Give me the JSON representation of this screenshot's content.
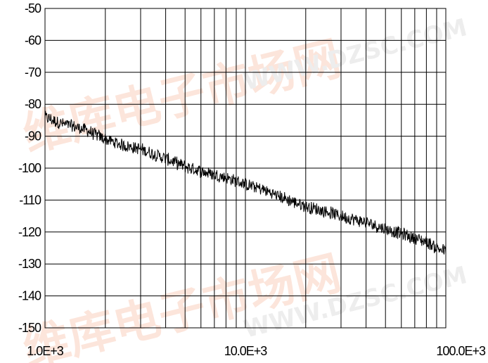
{
  "chart_data": {
    "type": "line",
    "title": "",
    "xlabel": "",
    "ylabel": "",
    "x_scale": "log",
    "xlim": [
      1000,
      100000
    ],
    "ylim": [
      -150,
      -50
    ],
    "grid": true,
    "y_ticks": [
      "-50",
      "-60",
      "-70",
      "-80",
      "-90",
      "-100",
      "-110",
      "-120",
      "-130",
      "-140",
      "-150"
    ],
    "x_ticks": [
      "1.0E+3",
      "10.0E+3",
      "100.0E+3"
    ],
    "series": [
      {
        "color": "#000000",
        "x": [
          1000,
          1200,
          1400,
          1600,
          2000,
          2500,
          3000,
          4000,
          5000,
          6000,
          7000,
          8000,
          10000,
          12000,
          15000,
          20000,
          25000,
          30000,
          40000,
          50000,
          60000,
          70000,
          80000,
          90000,
          100000
        ],
        "y": [
          -84,
          -86,
          -87,
          -88,
          -91,
          -93,
          -94,
          -97,
          -99.5,
          -101,
          -102,
          -103,
          -105,
          -106.5,
          -109,
          -112,
          -113.5,
          -115,
          -117,
          -119,
          -120.5,
          -122,
          -123,
          -125,
          -126
        ]
      }
    ]
  },
  "watermark": {
    "brand": "维库电子市场网",
    "url": "WWW.DZSC.COM"
  }
}
